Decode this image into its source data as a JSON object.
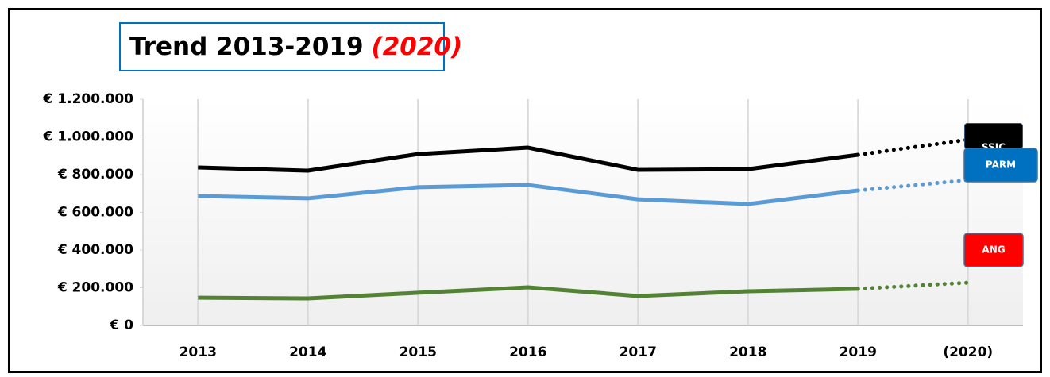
{
  "chart_data": {
    "type": "line",
    "title": "Trend 2013-2019",
    "title_highlight": "(2020)",
    "categories": [
      "2013",
      "2014",
      "2015",
      "2016",
      "2017",
      "2018",
      "2019",
      "(2020)"
    ],
    "series": [
      {
        "name": "SSIC",
        "color": "#000000",
        "label_color": "#000000",
        "values": [
          838000,
          821000,
          909000,
          943000,
          825000,
          829000,
          905000,
          985000
        ]
      },
      {
        "name": "PARM",
        "color": "#5b9bd5",
        "label_color": "#0070c0",
        "values": [
          686000,
          674000,
          733000,
          745000,
          669000,
          644000,
          716000,
          771000
        ]
      },
      {
        "name": "ANG",
        "color": "#548235",
        "label_color": "#ff0000",
        "values": [
          147000,
          143000,
          173000,
          202000,
          156000,
          181000,
          194000,
          227000
        ]
      }
    ],
    "last_segment_dotted": true,
    "ylim": [
      0,
      1200000
    ],
    "yticks": [
      {
        "value": 0,
        "label": "€ 0"
      },
      {
        "value": 200000,
        "label": "€ 200.000"
      },
      {
        "value": 400000,
        "label": "€ 400.000"
      },
      {
        "value": 600000,
        "label": "€ 600.000"
      },
      {
        "value": 800000,
        "label": "€ 800.000"
      },
      {
        "value": 1000000,
        "label": "€ 1.000.000"
      },
      {
        "value": 1200000,
        "label": "€ 1.200.000"
      }
    ],
    "grid": "vertical"
  }
}
